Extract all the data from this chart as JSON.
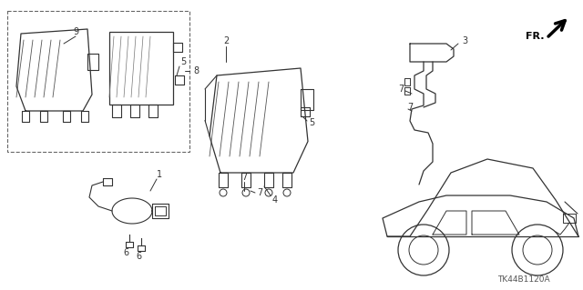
{
  "background_color": "#ffffff",
  "diagram_code": "TK44B1120A",
  "line_color": "#333333",
  "figsize": [
    6.4,
    3.19
  ],
  "dpi": 100
}
